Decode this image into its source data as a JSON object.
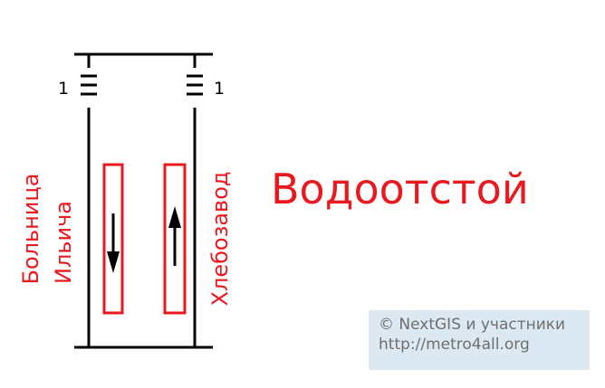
{
  "diagram": {
    "station_name": "Водоотстой",
    "left_track_label_line1": "Больница",
    "left_track_label_line2": "Ильича",
    "right_track_label": "Хлебозавод",
    "left_car_number": "1",
    "right_car_number": "1",
    "left_direction": "down",
    "right_direction": "up",
    "label_color": "#e8191f",
    "line_color": "#000000"
  },
  "credits": {
    "line1": "© NextGIS и участники",
    "line2": "http://metro4all.org",
    "background": "#dce9f3"
  }
}
